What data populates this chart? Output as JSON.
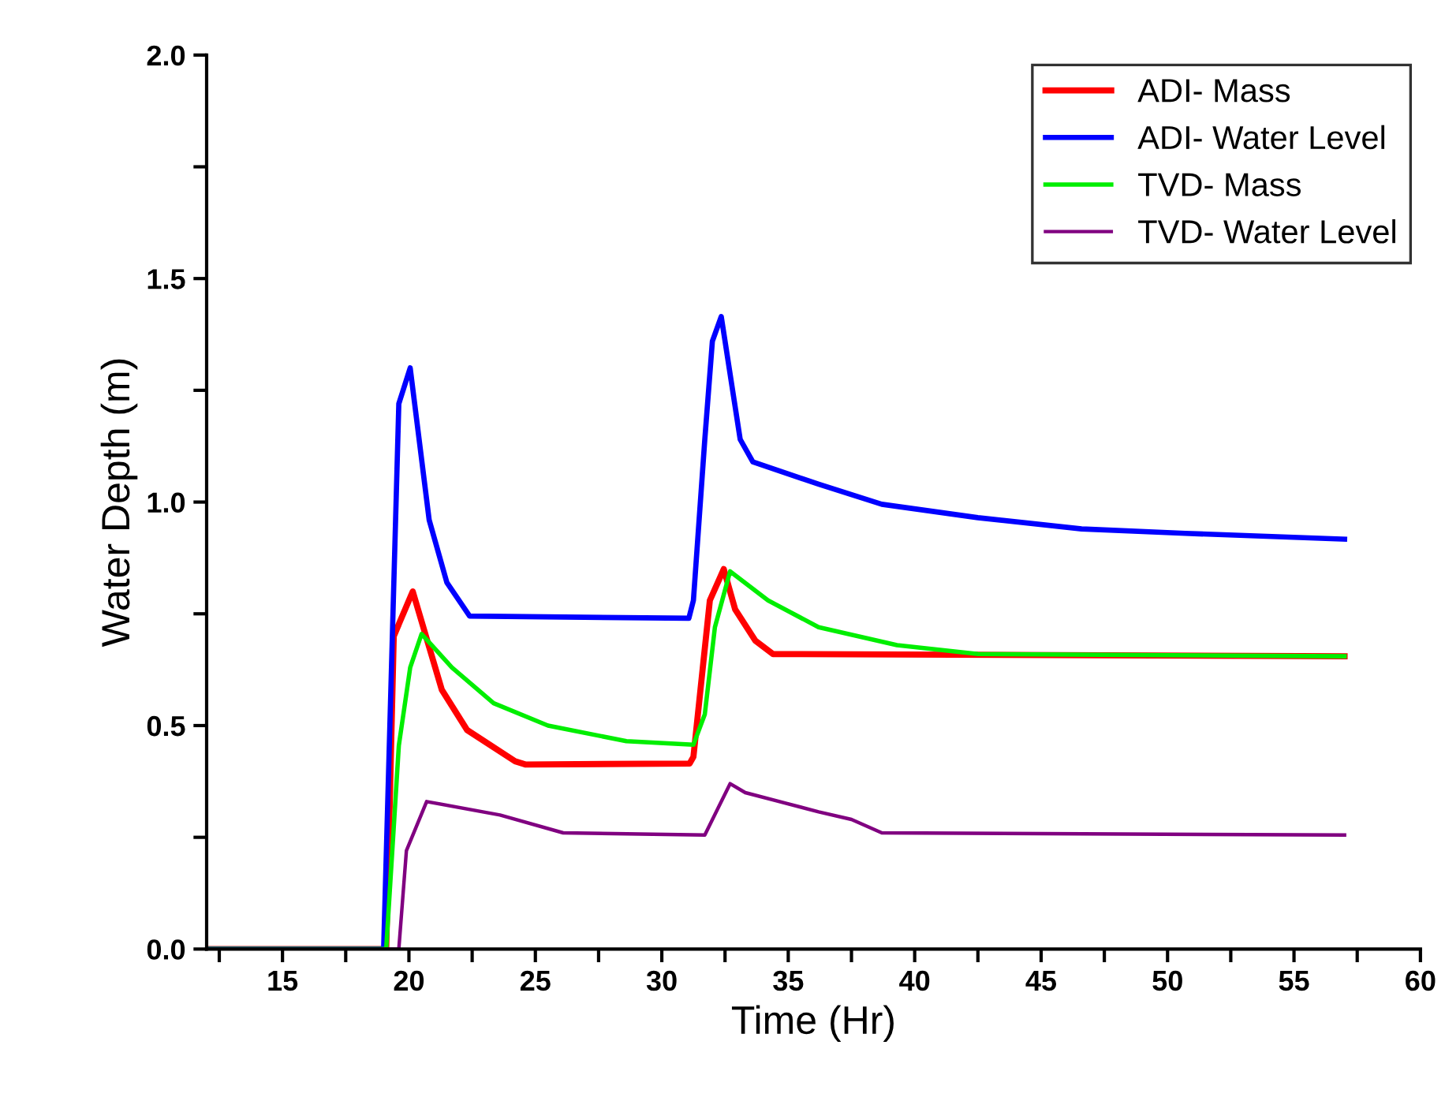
{
  "chart_data": {
    "type": "line",
    "xlabel": "Time (Hr)",
    "ylabel": "Water Depth (m)",
    "xlim": [
      12,
      60
    ],
    "ylim": [
      0,
      2.0
    ],
    "xticks": [
      {
        "value": 12.5,
        "label": null
      },
      15,
      {
        "value": 17.5,
        "label": null
      },
      20,
      {
        "value": 22.5,
        "label": null
      },
      25,
      {
        "value": 27.5,
        "label": null
      },
      30,
      {
        "value": 32.5,
        "label": null
      },
      35,
      {
        "value": 37.5,
        "label": null
      },
      40,
      {
        "value": 42.5,
        "label": null
      },
      45,
      {
        "value": 47.5,
        "label": null
      },
      50,
      {
        "value": 52.5,
        "label": null
      },
      55,
      {
        "value": 57.5,
        "label": null
      },
      60
    ],
    "yticks": [
      {
        "value": 0,
        "label": "0.0"
      },
      {
        "value": 0.25,
        "label": null
      },
      0.5,
      {
        "value": 0.75,
        "label": null
      },
      {
        "value": 1.0,
        "label": "1.0"
      },
      {
        "value": 1.25,
        "label": null
      },
      1.5,
      {
        "value": 1.75,
        "label": null
      },
      {
        "value": 2.0,
        "label": "2.0"
      }
    ],
    "grid": false,
    "legend": "top right",
    "marker": "none",
    "line_style": "solid",
    "series": [
      {
        "name": "ADI- Mass",
        "color": "#ff0000",
        "x": [
          12,
          19.1,
          19.4,
          20.15,
          21.3,
          22.3,
          24.2,
          24.6,
          31.1,
          31.25,
          31.9,
          32.45,
          32.9,
          33.7,
          34.4,
          57
        ],
        "values": [
          0,
          0,
          0.7,
          0.8,
          0.58,
          0.49,
          0.42,
          0.413,
          0.415,
          0.43,
          0.78,
          0.85,
          0.76,
          0.69,
          0.66,
          0.655
        ]
      },
      {
        "name": "ADI- Water Level",
        "color": "#0000ff",
        "x": [
          12,
          19.0,
          19.6,
          20.05,
          20.8,
          21.5,
          22.4,
          31.07,
          31.25,
          31.7,
          32.0,
          32.35,
          33.1,
          33.6,
          36.2,
          38.7,
          42.5,
          46.6,
          50.7,
          57
        ],
        "values": [
          0,
          0,
          1.22,
          1.3,
          0.96,
          0.82,
          0.745,
          0.74,
          0.78,
          1.14,
          1.36,
          1.415,
          1.14,
          1.09,
          1.04,
          0.995,
          0.965,
          0.94,
          0.93,
          0.917
        ]
      },
      {
        "name": "TVD- Mass",
        "color": "#00ee00",
        "x": [
          12,
          19.1,
          19.6,
          20.05,
          20.5,
          21.7,
          23.35,
          25.5,
          28.6,
          31.25,
          31.7,
          32.1,
          32.7,
          34.2,
          36.2,
          39.3,
          42.5,
          57
        ],
        "values": [
          0,
          0,
          0.455,
          0.63,
          0.705,
          0.63,
          0.55,
          0.5,
          0.465,
          0.457,
          0.525,
          0.72,
          0.845,
          0.78,
          0.72,
          0.68,
          0.66,
          0.655
        ]
      },
      {
        "name": "TVD- Water Level",
        "color": "#800080",
        "x": [
          12,
          19.6,
          19.9,
          20.7,
          23.6,
          26.1,
          31.7,
          32.7,
          33.3,
          36.2,
          37.5,
          38.7,
          57
        ],
        "values": [
          0,
          0,
          0.22,
          0.33,
          0.3,
          0.26,
          0.255,
          0.37,
          0.35,
          0.307,
          0.29,
          0.26,
          0.255
        ]
      }
    ]
  }
}
